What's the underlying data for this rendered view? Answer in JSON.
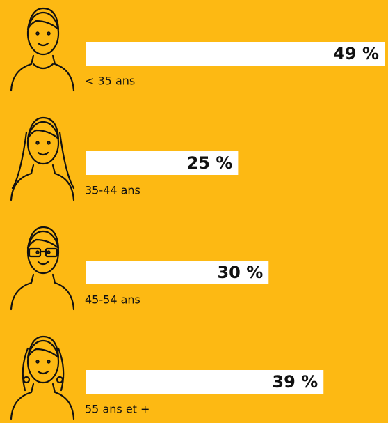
{
  "chart_data": {
    "type": "bar",
    "categories": [
      "< 35 ans",
      "35-44 ans",
      "45-54 ans",
      "55 ans et +"
    ],
    "values": [
      49,
      25,
      30,
      39
    ],
    "value_labels": [
      "49 %",
      "25 %",
      "30 %",
      "39 %"
    ],
    "color": "#ffffff"
  }
}
